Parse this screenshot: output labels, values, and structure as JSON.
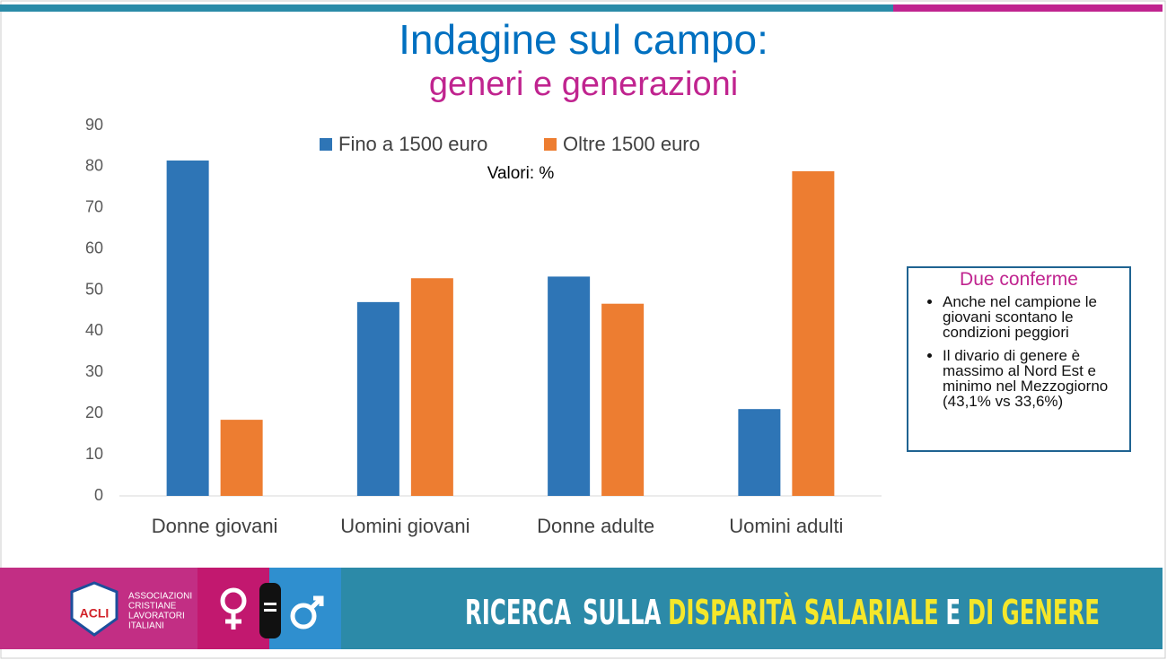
{
  "chart_data": {
    "type": "bar",
    "title": "Indagine sul campo:",
    "subtitle": "generi e generazioni",
    "annotation": "Valori: %",
    "categories": [
      "Donne giovani",
      "Uomini giovani",
      "Donne adulte",
      "Uomini adulti"
    ],
    "series": [
      {
        "name": "Fino a 1500 euro",
        "color": "#2e75b6",
        "values": [
          81.5,
          47.1,
          53.3,
          21.1
        ]
      },
      {
        "name": "Oltre 1500 euro",
        "color": "#ed7d31",
        "values": [
          18.5,
          52.9,
          46.7,
          78.9
        ]
      }
    ],
    "ylim": [
      0,
      90
    ],
    "yticks": [
      0,
      10,
      20,
      30,
      40,
      50,
      60,
      70,
      80,
      90
    ],
    "grid": false,
    "legend": "top"
  },
  "box": {
    "title": "Due conferme",
    "items": [
      "Anche nel campione le giovani scontano le condizioni peggiori",
      "Il divario di genere è massimo al Nord Est e minimo nel Mezzogiorno (43,1% vs 33,6%)"
    ]
  },
  "footer": {
    "logo": "ACLI",
    "org": [
      "ASSOCIAZIONI",
      "CRISTIANE",
      "LAVORATORI",
      "ITALIANI"
    ],
    "banner": [
      {
        "text": "RICERCA",
        "color": "#ffffff"
      },
      {
        "text": "SULLA",
        "color": "#ffffff"
      },
      {
        "text": "DISPARITÀ SALARIALE",
        "color": "#f5e72a"
      },
      {
        "text": "E",
        "color": "#ffffff"
      },
      {
        "text": "DI GENERE",
        "color": "#f5e72a"
      }
    ]
  }
}
